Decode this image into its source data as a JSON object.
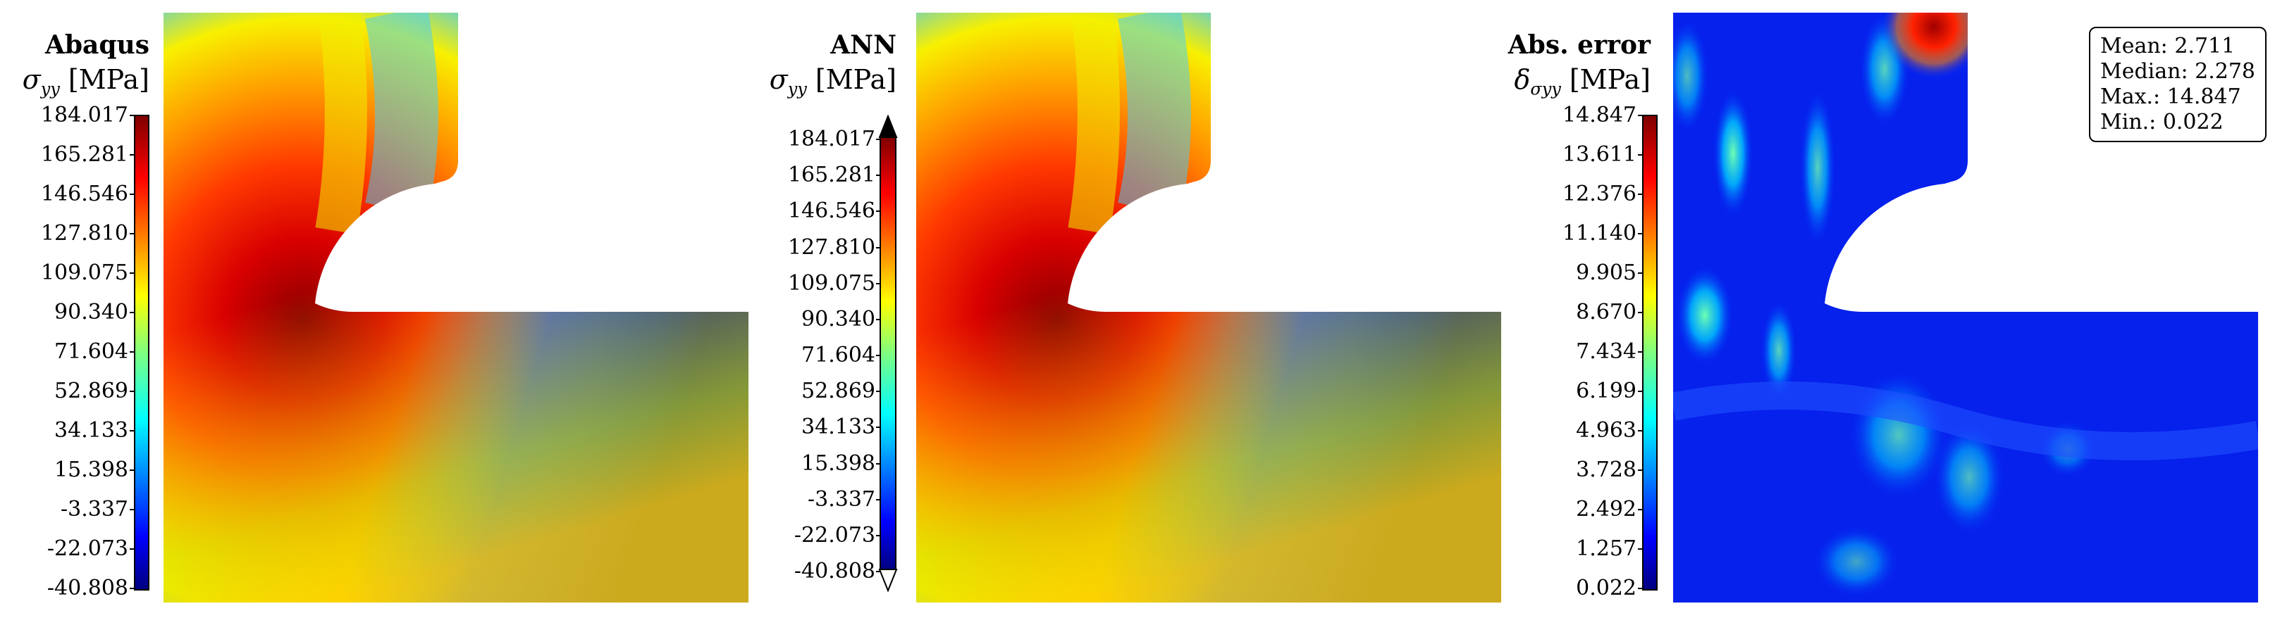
{
  "panels": [
    {
      "id": "abaqus",
      "title": "Abaqus",
      "quantity_symbol": "σ",
      "quantity_sub": "yy",
      "unit": "[MPa]",
      "ticks": [
        "184.017",
        "165.281",
        "146.546",
        "127.810",
        "109.075",
        "90.340",
        "71.604",
        "52.869",
        "34.133",
        "15.398",
        "-3.337",
        "-22.073",
        "-40.808"
      ]
    },
    {
      "id": "ann",
      "title": "ANN",
      "quantity_symbol": "σ",
      "quantity_sub": "yy",
      "unit": "[MPa]",
      "ticks": [
        "184.017",
        "165.281",
        "146.546",
        "127.810",
        "109.075",
        "90.340",
        "71.604",
        "52.869",
        "34.133",
        "15.398",
        "-3.337",
        "-22.073",
        "-40.808"
      ]
    },
    {
      "id": "error",
      "title": "Abs. error",
      "quantity_symbol": "δ",
      "quantity_sub": "σyy",
      "unit": "[MPa]",
      "ticks": [
        "14.847",
        "13.611",
        "12.376",
        "11.140",
        "9.905",
        "8.670",
        "7.434",
        "6.199",
        "4.963",
        "3.728",
        "2.492",
        "1.257",
        "0.022"
      ]
    }
  ],
  "stats": {
    "mean": "Mean: 2.711",
    "median": "Median: 2.278",
    "max": "Max.: 14.847",
    "min": "Min.: 0.022"
  },
  "colors": {
    "colormap": [
      "#00007f",
      "#0000ff",
      "#007fff",
      "#00ffff",
      "#7fff7f",
      "#ffff00",
      "#ff7f00",
      "#ff0000",
      "#7f0000"
    ],
    "background": "#ffffff"
  }
}
